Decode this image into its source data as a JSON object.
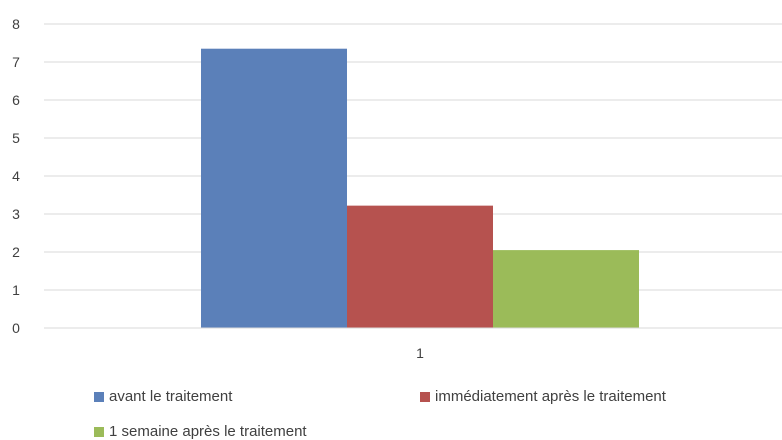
{
  "chart_data": {
    "type": "bar",
    "title": "",
    "xlabel": "",
    "ylabel": "",
    "categories": [
      "1"
    ],
    "ylim": [
      0,
      8
    ],
    "yticks": [
      "0",
      "1",
      "2",
      "3",
      "4",
      "5",
      "6",
      "7",
      "8"
    ],
    "grid": true,
    "legend_position": "bottom",
    "series": [
      {
        "name": "avant le traitement",
        "values": [
          7.35
        ],
        "color": "#5b80b9"
      },
      {
        "name": "immédiatement après le traitement",
        "values": [
          3.22
        ],
        "color": "#b6524f"
      },
      {
        "name": "1 semaine après le traitement",
        "values": [
          2.05
        ],
        "color": "#9bbb59"
      }
    ]
  }
}
